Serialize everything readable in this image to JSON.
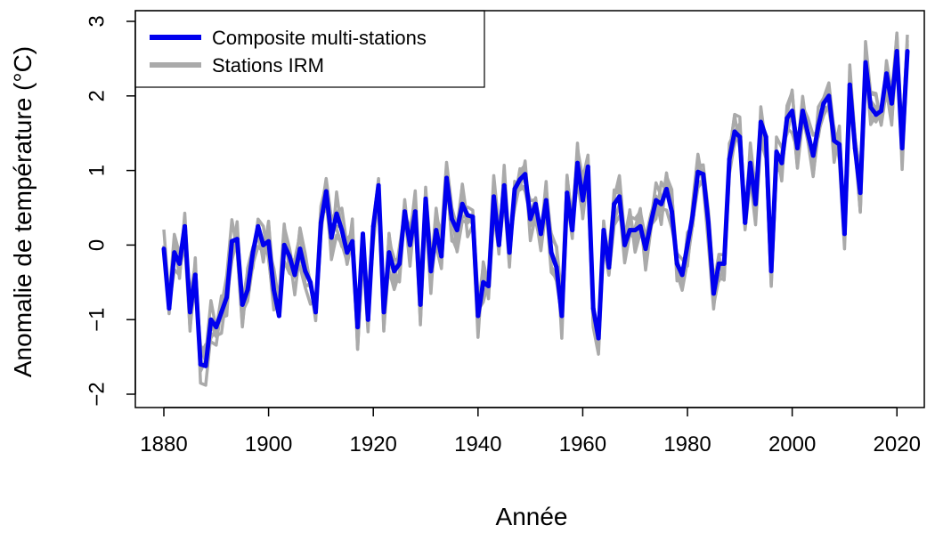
{
  "chart_data": {
    "type": "line",
    "xlabel": "Année",
    "ylabel": "Anomalie de température (°C)",
    "xlim": [
      1880,
      2022
    ],
    "ylim": [
      -2,
      3
    ],
    "xticks": [
      1880,
      1900,
      1920,
      1940,
      1960,
      1980,
      2000,
      2020
    ],
    "yticks": [
      -2,
      -1,
      0,
      1,
      2,
      3
    ],
    "legend_position": "top-left",
    "grid": false,
    "series": [
      {
        "name": "Composite multi-stations",
        "color": "#0000ee",
        "x_start": 1880,
        "values": [
          -0.05,
          -0.85,
          -0.1,
          -0.25,
          0.25,
          -0.9,
          -0.4,
          -1.6,
          -1.62,
          -1.0,
          -1.1,
          -0.9,
          -0.7,
          0.05,
          0.08,
          -0.8,
          -0.6,
          -0.1,
          0.25,
          0.0,
          0.05,
          -0.6,
          -0.95,
          0.0,
          -0.15,
          -0.4,
          -0.05,
          -0.35,
          -0.5,
          -0.9,
          0.3,
          0.72,
          0.1,
          0.42,
          0.2,
          -0.1,
          0.05,
          -1.1,
          0.15,
          -1.0,
          0.25,
          0.8,
          -0.9,
          -0.1,
          -0.35,
          -0.25,
          0.45,
          0.0,
          0.45,
          -0.8,
          0.62,
          -0.35,
          0.2,
          -0.15,
          0.9,
          0.35,
          0.2,
          0.55,
          0.4,
          0.38,
          -0.95,
          -0.5,
          -0.55,
          0.65,
          0.0,
          0.8,
          -0.1,
          0.75,
          0.88,
          0.95,
          0.35,
          0.55,
          0.15,
          0.6,
          -0.1,
          -0.3,
          -0.95,
          0.7,
          0.2,
          1.1,
          0.6,
          1.05,
          -0.85,
          -1.25,
          0.2,
          -0.3,
          0.55,
          0.65,
          0.0,
          0.2,
          0.2,
          0.25,
          -0.05,
          0.3,
          0.6,
          0.55,
          0.75,
          0.45,
          -0.25,
          -0.4,
          0.0,
          0.4,
          0.98,
          0.95,
          0.3,
          -0.65,
          -0.25,
          -0.25,
          1.15,
          1.52,
          1.45,
          0.3,
          1.1,
          0.55,
          1.65,
          1.45,
          -0.35,
          1.25,
          1.1,
          1.7,
          1.8,
          1.3,
          1.8,
          1.5,
          1.2,
          1.6,
          1.9,
          2.0,
          1.4,
          1.35,
          0.15,
          2.15,
          1.3,
          0.7,
          2.45,
          1.85,
          1.75,
          1.8,
          2.3,
          1.9,
          2.6,
          1.3,
          2.6
        ]
      },
      {
        "name": "Stations IRM",
        "color": "#aaaaaa",
        "x_start": 1880,
        "values": [
          -0.05,
          -0.85,
          -0.1,
          -0.25,
          0.25,
          -0.9,
          -0.4,
          -1.6,
          -1.62,
          -1.0,
          -1.1,
          -0.9,
          -0.7,
          0.05,
          0.08,
          -0.8,
          -0.6,
          -0.1,
          0.25,
          0.0,
          0.05,
          -0.6,
          -0.95,
          0.0,
          -0.15,
          -0.4,
          -0.05,
          -0.35,
          -0.5,
          -0.9,
          0.3,
          0.72,
          0.1,
          0.42,
          0.2,
          -0.1,
          0.05,
          -1.1,
          0.15,
          -1.0,
          0.25,
          0.8,
          -0.9,
          -0.1,
          -0.35,
          -0.25,
          0.45,
          0.0,
          0.45,
          -0.8,
          0.62,
          -0.35,
          0.2,
          -0.15,
          0.9,
          0.35,
          0.2,
          0.55,
          0.4,
          0.38,
          -0.95,
          -0.5,
          -0.55,
          0.65,
          0.0,
          0.8,
          -0.1,
          0.75,
          0.88,
          0.95,
          0.35,
          0.55,
          0.15,
          0.6,
          -0.1,
          -0.3,
          -0.95,
          0.7,
          0.2,
          1.1,
          0.6,
          1.05,
          -0.85,
          -1.25,
          0.2,
          -0.3,
          0.55,
          0.65,
          0.0,
          0.2,
          0.2,
          0.25,
          -0.05,
          0.3,
          0.6,
          0.55,
          0.75,
          0.45,
          -0.25,
          -0.4,
          0.0,
          0.4,
          0.98,
          0.95,
          0.3,
          -0.65,
          -0.25,
          -0.25,
          1.15,
          1.52,
          1.45,
          0.3,
          1.1,
          0.55,
          1.65,
          1.45,
          -0.35,
          1.25,
          1.1,
          1.7,
          1.8,
          1.3,
          1.8,
          1.5,
          1.2,
          1.6,
          1.9,
          2.0,
          1.4,
          1.35,
          0.15,
          2.15,
          1.3,
          0.7,
          2.45,
          1.85,
          1.75,
          1.8,
          2.3,
          1.9,
          2.6,
          1.3,
          2.6
        ],
        "spread": 0.3
      }
    ]
  }
}
